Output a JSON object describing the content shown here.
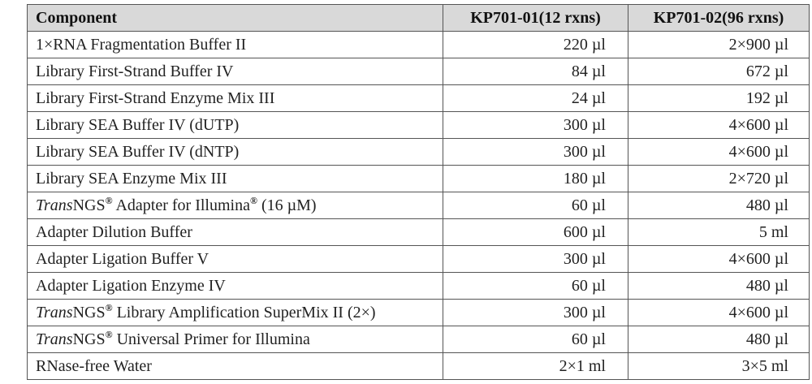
{
  "table": {
    "headers": {
      "component": "Component",
      "kit_a": "KP701-01(12 rxns)",
      "kit_b": "KP701-02(96 rxns)"
    },
    "rows": [
      {
        "pre": "",
        "name": "1×RNA Fragmentation Buffer II",
        "a": "220 µl",
        "b": "2×900 µl"
      },
      {
        "pre": "",
        "name": "Library First-Strand Buffer IV",
        "a": "84 µl",
        "b": "672 µl"
      },
      {
        "pre": "",
        "name": "Library First-Strand Enzyme Mix III",
        "a": "24 µl",
        "b": "192 µl"
      },
      {
        "pre": "",
        "name": "Library SEA Buffer IV (dUTP)",
        "a": "300 µl",
        "b": "4×600 µl"
      },
      {
        "pre": "",
        "name": "Library SEA Buffer IV (dNTP)",
        "a": "300 µl",
        "b": "4×600 µl"
      },
      {
        "pre": "",
        "name": "Library SEA Enzyme Mix III",
        "a": "180 µl",
        "b": "2×720 µl"
      },
      {
        "pre": "Trans",
        "name": "NGS",
        "reg": "®",
        "name2": " Adapter for Illumina",
        "reg2": "®",
        "name3": " (16 µM)",
        "a": "60 µl",
        "b": "480 µl"
      },
      {
        "pre": "",
        "name": "Adapter Dilution Buffer",
        "a": "600 µl",
        "b": "5 ml"
      },
      {
        "pre": "",
        "name": "Adapter Ligation Buffer V",
        "a": "300 µl",
        "b": "4×600 µl"
      },
      {
        "pre": "",
        "name": "Adapter Ligation Enzyme IV",
        "a": "60 µl",
        "b": "480 µl"
      },
      {
        "pre": "Trans",
        "name": "NGS",
        "reg": "®",
        "name2": " Library Amplification SuperMix II (2×)",
        "a": "300 µl",
        "b": "4×600 µl"
      },
      {
        "pre": "Trans",
        "name": "NGS",
        "reg": "®",
        "name2": " Universal Primer for Illumina",
        "a": "60 µl",
        "b": "480 µl"
      },
      {
        "pre": "",
        "name": "RNase-free Water",
        "a": "2×1 ml",
        "b": "3×5 ml"
      }
    ]
  }
}
